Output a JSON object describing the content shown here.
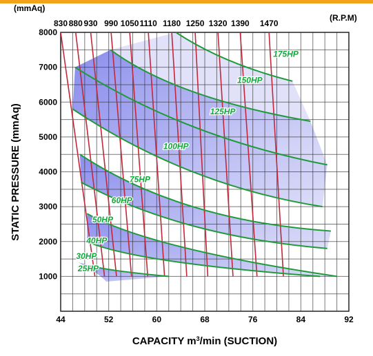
{
  "chart_data": {
    "type": "line",
    "title": "",
    "xlabel": "CAPACITY  m³/min (SUCTION)",
    "xlabel_parts": {
      "pre": "CAPACITY  m",
      "sup": "3",
      "post": "/min (SUCTION)"
    },
    "ylabel": "STATIC PRESSURE  (mmAq)",
    "y_unit_label": "(mmAq)",
    "rpm_unit_label": "(R.P.M)",
    "xlim": [
      44,
      92
    ],
    "ylim": [
      0,
      8000
    ],
    "x_ticks": [
      44,
      52,
      60,
      68,
      76,
      84,
      92
    ],
    "y_ticks": [
      1000,
      2000,
      3000,
      4000,
      5000,
      6000,
      7000,
      8000
    ],
    "x_minor_step": 2,
    "y_minor_step": 500,
    "grid": true,
    "colors": {
      "band_fill": "#7f82ea",
      "band_light": "#d9dbf8",
      "band_edge": "#1f9a3a",
      "rpm_line": "#c2273a",
      "hp_label": "#13a83c",
      "grid": "#333333",
      "top_bar": "#f3a21a"
    },
    "rpm_lines": [
      {
        "rpm": "830",
        "points": [
          [
            44.0,
            8000
          ],
          [
            49.7,
            1000
          ]
        ]
      },
      {
        "rpm": "880",
        "points": [
          [
            46.5,
            8000
          ],
          [
            51.3,
            1000
          ]
        ]
      },
      {
        "rpm": "930",
        "points": [
          [
            49.0,
            8000
          ],
          [
            53.3,
            1000
          ]
        ]
      },
      {
        "rpm": "990",
        "points": [
          [
            52.4,
            8000
          ],
          [
            55.8,
            1000
          ]
        ]
      },
      {
        "rpm": "1050",
        "points": [
          [
            55.5,
            8000
          ],
          [
            58.5,
            1000
          ]
        ]
      },
      {
        "rpm": "1110",
        "points": [
          [
            58.6,
            8000
          ],
          [
            61.3,
            1000
          ]
        ]
      },
      {
        "rpm": "1180",
        "points": [
          [
            62.5,
            8000
          ],
          [
            65.0,
            1000
          ]
        ]
      },
      {
        "rpm": "1250",
        "points": [
          [
            66.4,
            8000
          ],
          [
            68.5,
            1000
          ]
        ]
      },
      {
        "rpm": "1320",
        "points": [
          [
            70.2,
            8000
          ],
          [
            72.7,
            1000
          ]
        ]
      },
      {
        "rpm": "1390",
        "points": [
          [
            73.9,
            8000
          ],
          [
            76.7,
            1000
          ]
        ]
      },
      {
        "rpm": "1470",
        "points": [
          [
            78.7,
            8000
          ],
          [
            81.1,
            1000
          ]
        ]
      }
    ],
    "hp_curves": [
      {
        "name": "175HP",
        "points": [
          [
            63.2,
            8000
          ],
          [
            72.0,
            7200
          ],
          [
            82.6,
            6600
          ]
        ]
      },
      {
        "name": "150HP",
        "points": [
          [
            52.3,
            7500
          ],
          [
            66.0,
            6300
          ],
          [
            85.6,
            5450
          ]
        ]
      },
      {
        "name": "125HP",
        "points": [
          [
            46.4,
            7000
          ],
          [
            66.0,
            5300
          ],
          [
            88.4,
            4200
          ]
        ]
      },
      {
        "name": "100HP",
        "points": [
          [
            46.0,
            5800
          ],
          [
            66.0,
            4000
          ],
          [
            87.6,
            3000
          ]
        ]
      },
      {
        "name": "75HP",
        "points": [
          [
            47.2,
            4500
          ],
          [
            66.0,
            3000
          ],
          [
            89.0,
            2300
          ]
        ]
      },
      {
        "name": "60HP",
        "points": [
          [
            47.4,
            3700
          ],
          [
            66.0,
            2450
          ],
          [
            88.4,
            1800
          ]
        ]
      },
      {
        "name": "50HP",
        "points": [
          [
            48.4,
            2800
          ],
          [
            64.0,
            1850
          ],
          [
            90.0,
            1000
          ]
        ]
      },
      {
        "name": "40HP",
        "points": [
          [
            48.4,
            2000
          ],
          [
            62.0,
            1450
          ],
          [
            87.2,
            1000
          ]
        ]
      },
      {
        "name": "30HP",
        "points": [
          [
            49.0,
            1300
          ],
          [
            54.0,
            1150
          ],
          [
            62.0,
            1000
          ]
        ]
      }
    ],
    "hp_labels": [
      {
        "text": "175HP",
        "x": 81.5,
        "y": 7300
      },
      {
        "text": "150HP",
        "x": 75.5,
        "y": 6550
      },
      {
        "text": "125HP",
        "x": 71.0,
        "y": 5650
      },
      {
        "text": "100HP",
        "x": 63.2,
        "y": 4650
      },
      {
        "text": "75HP",
        "x": 57.2,
        "y": 3700
      },
      {
        "text": "60HP",
        "x": 54.2,
        "y": 3100
      },
      {
        "text": "50HP",
        "x": 51.0,
        "y": 2550
      },
      {
        "text": "40HP",
        "x": 50.0,
        "y": 1950
      },
      {
        "text": "30HP",
        "x": 48.3,
        "y": 1500
      },
      {
        "text": "25HP",
        "x": 48.6,
        "y": 1150
      }
    ],
    "bands": [
      {
        "from": "175HP",
        "to": "150HP",
        "shade": "light"
      },
      {
        "from": "150HP",
        "to": "125HP",
        "shade": "dark"
      },
      {
        "from": "125HP",
        "to": "100HP",
        "shade": "dark"
      },
      {
        "from": "75HP",
        "to": "60HP",
        "shade": "dark"
      },
      {
        "from": "50HP",
        "to": "40HP",
        "shade": "dark"
      },
      {
        "from": "30HP",
        "to": "25HP",
        "shade": "dark"
      }
    ]
  }
}
